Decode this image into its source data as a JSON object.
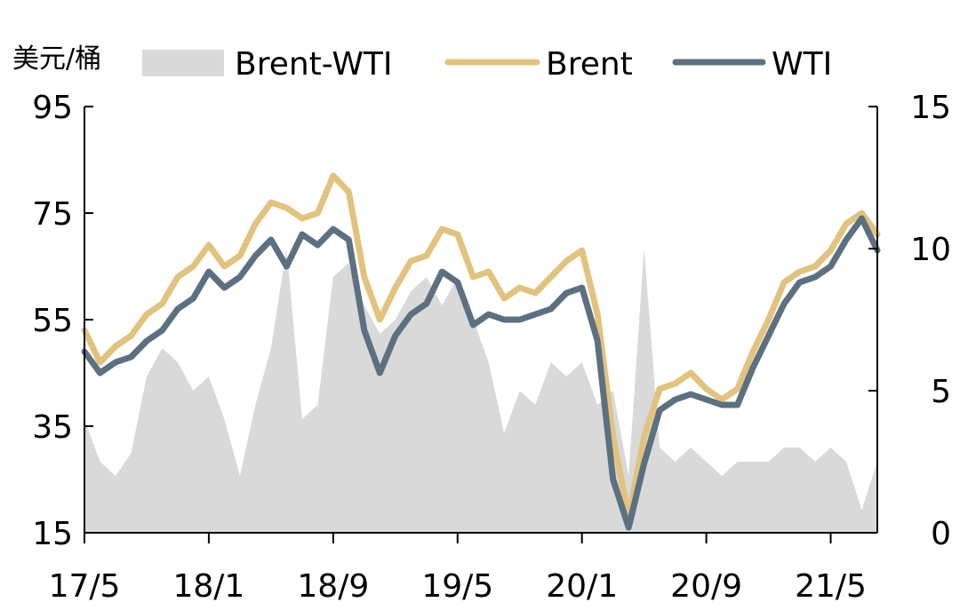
{
  "chart_data": {
    "type": "line",
    "unit_label": "美元/桶",
    "x_ticks": [
      "17/5",
      "18/1",
      "18/9",
      "19/5",
      "20/1",
      "20/9",
      "21/5"
    ],
    "y_left": {
      "min": 15,
      "max": 95,
      "ticks": [
        "95",
        "75",
        "55",
        "35",
        "15"
      ]
    },
    "y_right": {
      "min": 0,
      "max": 15,
      "ticks": [
        "15",
        "10",
        "5",
        "0"
      ]
    },
    "legend": [
      {
        "name": "Brent-WTI",
        "kind": "area",
        "color": "#d9d9d9"
      },
      {
        "name": "Brent",
        "kind": "line",
        "color": "#e2c37e"
      },
      {
        "name": "WTI",
        "kind": "line",
        "color": "#5c7080"
      }
    ],
    "x": [
      "2017-05",
      "2017-06",
      "2017-07",
      "2017-08",
      "2017-09",
      "2017-10",
      "2017-11",
      "2017-12",
      "2018-01",
      "2018-02",
      "2018-03",
      "2018-04",
      "2018-05",
      "2018-06",
      "2018-07",
      "2018-08",
      "2018-09",
      "2018-10",
      "2018-11",
      "2018-12",
      "2019-01",
      "2019-02",
      "2019-03",
      "2019-04",
      "2019-05",
      "2019-06",
      "2019-07",
      "2019-08",
      "2019-09",
      "2019-10",
      "2019-11",
      "2019-12",
      "2020-01",
      "2020-02",
      "2020-03",
      "2020-04",
      "2020-05",
      "2020-06",
      "2020-07",
      "2020-08",
      "2020-09",
      "2020-10",
      "2020-11",
      "2020-12",
      "2021-01",
      "2021-02",
      "2021-03",
      "2021-04",
      "2021-05",
      "2021-06",
      "2021-07",
      "2021-08"
    ],
    "series": [
      {
        "name": "Brent",
        "axis": "left",
        "values": [
          53,
          47,
          50,
          52,
          56,
          58,
          63,
          65,
          69,
          65,
          67,
          73,
          77,
          76,
          74,
          75,
          82,
          79,
          63,
          55,
          61,
          66,
          67,
          72,
          71,
          63,
          64,
          59,
          61,
          60,
          63,
          66,
          68,
          56,
          33,
          18,
          33,
          42,
          43,
          45,
          42,
          40,
          42,
          49,
          55,
          62,
          64,
          65,
          68,
          73,
          75,
          71
        ]
      },
      {
        "name": "WTI",
        "axis": "left",
        "values": [
          49,
          45,
          47,
          48,
          51,
          53,
          57,
          59,
          64,
          61,
          63,
          67,
          70,
          65,
          71,
          69,
          72,
          70,
          53,
          45,
          52,
          56,
          58,
          64,
          62,
          54,
          56,
          55,
          55,
          56,
          57,
          60,
          61,
          51,
          25,
          16,
          28,
          38,
          40,
          41,
          40,
          39,
          39,
          46,
          52,
          58,
          62,
          63,
          65,
          70,
          74,
          68
        ]
      },
      {
        "name": "Brent-WTI",
        "axis": "right",
        "values": [
          4.0,
          2.5,
          2.0,
          2.8,
          5.5,
          6.5,
          6.0,
          5.0,
          5.5,
          4.0,
          2.0,
          4.5,
          6.5,
          10.0,
          4.0,
          4.5,
          9.0,
          9.5,
          8.0,
          7.0,
          7.5,
          8.5,
          9.0,
          8.0,
          9.0,
          7.5,
          6.0,
          3.5,
          5.0,
          4.5,
          6.0,
          5.5,
          6.0,
          4.5,
          5.0,
          2.0,
          10.0,
          3.0,
          2.5,
          3.0,
          2.5,
          2.0,
          2.5,
          2.5,
          2.5,
          3.0,
          3.0,
          2.5,
          3.0,
          2.5,
          0.8,
          2.5
        ]
      }
    ]
  }
}
